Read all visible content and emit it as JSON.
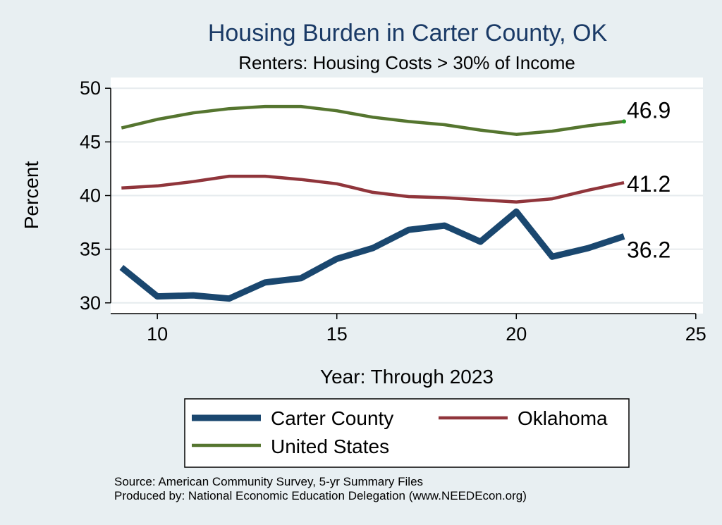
{
  "chart_data": {
    "type": "line",
    "title": "Housing Burden in Carter County, OK",
    "subtitle": "Renters: Housing Costs > 30% of Income",
    "xlabel": "Year: Through 2023",
    "ylabel": "Percent",
    "xlim": [
      8.7,
      25.2
    ],
    "ylim": [
      29,
      51
    ],
    "xticks": [
      10,
      15,
      20,
      25
    ],
    "yticks": [
      30,
      35,
      40,
      45,
      50
    ],
    "grid": true,
    "x": [
      9,
      10,
      11,
      12,
      13,
      14,
      15,
      16,
      17,
      18,
      19,
      20,
      21,
      22,
      23
    ],
    "series": [
      {
        "name": "Carter County",
        "color": "#1a476f",
        "values": [
          33.3,
          30.6,
          30.7,
          30.4,
          31.9,
          32.3,
          34.1,
          35.1,
          36.8,
          37.2,
          35.7,
          38.5,
          34.3,
          35.1,
          36.2
        ],
        "end_label": "36.2"
      },
      {
        "name": "Oklahoma",
        "color": "#90353b",
        "values": [
          40.7,
          40.9,
          41.3,
          41.8,
          41.8,
          41.5,
          41.1,
          40.3,
          39.9,
          39.8,
          39.6,
          39.4,
          39.7,
          40.5,
          41.2
        ],
        "end_label": "41.2"
      },
      {
        "name": "United States",
        "color": "#55752f",
        "values": [
          46.3,
          47.1,
          47.7,
          48.1,
          48.3,
          48.3,
          47.9,
          47.3,
          46.9,
          46.6,
          46.1,
          45.7,
          46.0,
          46.5,
          46.9
        ],
        "end_label": "46.9"
      }
    ],
    "legend": {
      "placement": "bottom",
      "entries": [
        "Carter County",
        "Oklahoma",
        "United States"
      ]
    },
    "source_lines": [
      "Source: American Community Survey, 5-yr Summary Files",
      "Produced by: National Economic Education Delegation (www.NEEDEcon.org)"
    ]
  }
}
